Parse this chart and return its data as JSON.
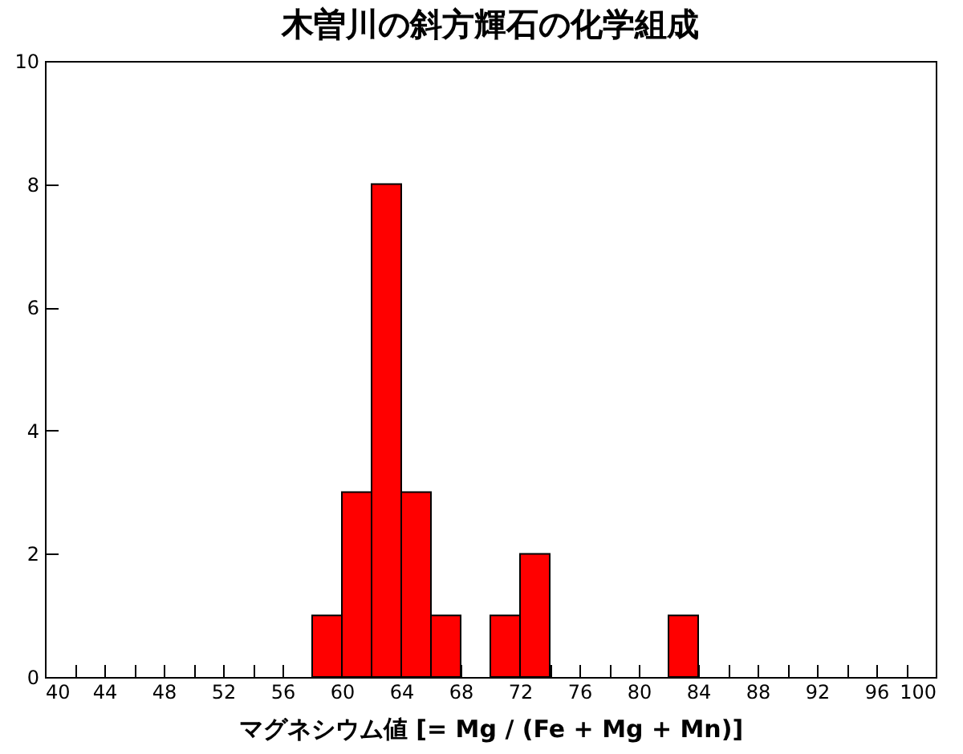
{
  "chart_data": {
    "type": "histogram",
    "title": "木曽川の斜方輝石の化学組成",
    "xlabel": "マグネシウム値 [= Mg / (Fe + Mg + Mn)]",
    "bins": [
      58,
      60,
      62,
      64,
      66,
      68,
      70,
      72,
      74,
      76,
      78,
      80,
      82,
      84
    ],
    "values": [
      1,
      3,
      8,
      3,
      1,
      0,
      1,
      2,
      0,
      0,
      0,
      0,
      1
    ],
    "color": "#ff0000",
    "xlim": [
      40,
      100
    ],
    "xticks": [
      40,
      {
        "value": 42,
        "label": null
      },
      44,
      {
        "value": 46,
        "label": null
      },
      48,
      {
        "value": 50,
        "label": null
      },
      52,
      {
        "value": 54,
        "label": null
      },
      56,
      {
        "value": 58,
        "label": null
      },
      60,
      {
        "value": 62,
        "label": null
      },
      64,
      {
        "value": 66,
        "label": null
      },
      68,
      {
        "value": 70,
        "label": null
      },
      72,
      {
        "value": 74,
        "label": null
      },
      76,
      {
        "value": 78,
        "label": null
      },
      80,
      {
        "value": 82,
        "label": null
      },
      84,
      {
        "value": 86,
        "label": null
      },
      88,
      {
        "value": 90,
        "label": null
      },
      92,
      {
        "value": 94,
        "label": null
      },
      96,
      {
        "value": 98,
        "label": null
      },
      100
    ],
    "ylim": [
      0,
      10
    ],
    "yticks": [
      0,
      2,
      4,
      6,
      8,
      10
    ],
    "grid": false
  }
}
